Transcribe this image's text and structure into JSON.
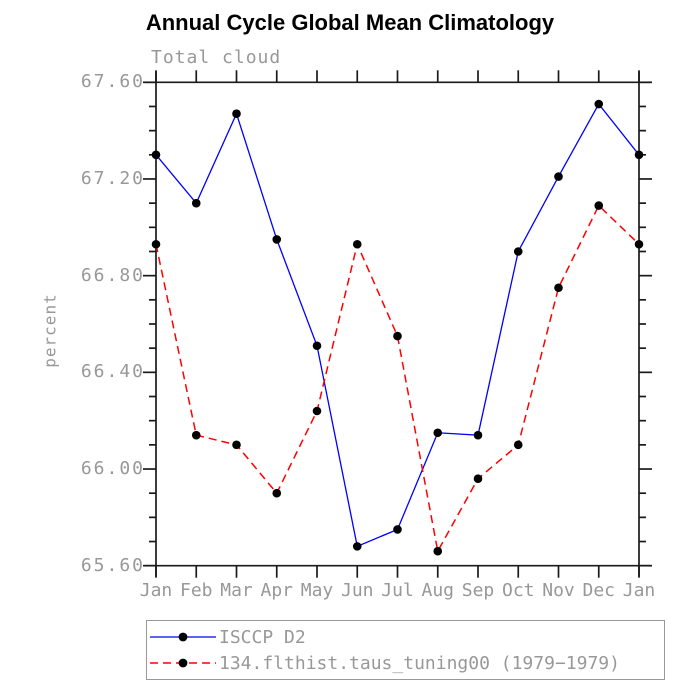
{
  "page": {
    "background": "#ffffff"
  },
  "chart_data": {
    "type": "line",
    "title": "Annual Cycle Global Mean Climatology",
    "subtitle": "Total cloud",
    "ylabel": "percent",
    "xlabel": "",
    "categories": [
      "Jan",
      "Feb",
      "Mar",
      "Apr",
      "May",
      "Jun",
      "Jul",
      "Aug",
      "Sep",
      "Oct",
      "Nov",
      "Dec",
      "Jan"
    ],
    "ylim": [
      65.6,
      67.6
    ],
    "y_major_step": 0.4,
    "y_minor_step": 0.1,
    "y_tick_labels": [
      "67.60",
      "67.20",
      "66.80",
      "66.40",
      "66.00",
      "65.60"
    ],
    "grid": false,
    "legend_position": "bottom",
    "axis_color": "#1a1a1a",
    "label_color": "#989898",
    "marker_color": "#000000",
    "series": [
      {
        "name": "ISCCP D2",
        "color": "#0000ff",
        "style": "solid",
        "values": [
          67.3,
          67.1,
          67.47,
          66.95,
          66.51,
          65.68,
          65.75,
          66.15,
          66.14,
          66.9,
          67.21,
          67.51,
          67.3
        ]
      },
      {
        "name": "134.flthist.taus_tuning00 (1979−1979)",
        "color": "#ff0000",
        "style": "dashed",
        "values": [
          66.93,
          66.14,
          66.1,
          65.9,
          66.24,
          66.93,
          66.55,
          65.66,
          65.96,
          66.1,
          66.75,
          67.09,
          66.93
        ]
      }
    ]
  }
}
